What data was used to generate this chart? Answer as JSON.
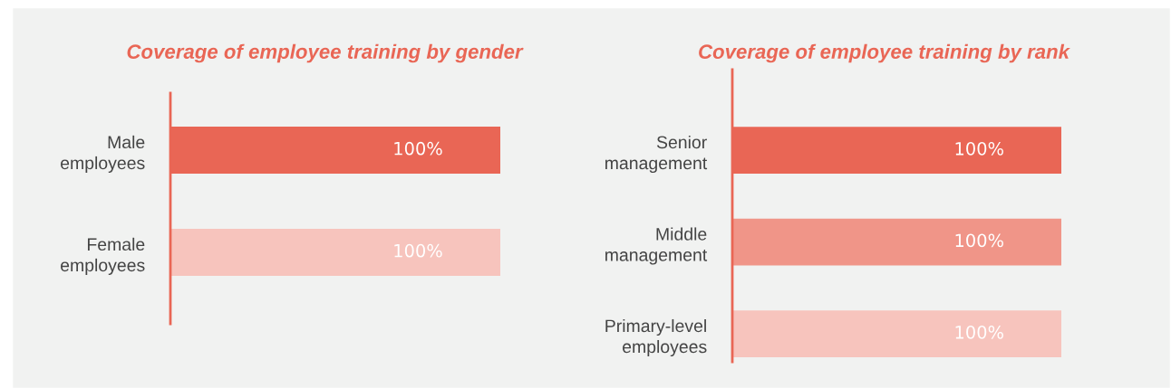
{
  "chart_data": [
    {
      "type": "bar",
      "orientation": "horizontal",
      "title": "Coverage of employee training by gender",
      "categories": [
        "Male employees",
        "Female employees"
      ],
      "values": [
        100,
        100
      ],
      "colors": [
        "#e96655",
        "#f7c4bd"
      ],
      "value_labels": [
        "100%",
        "100%"
      ],
      "legend": false
    },
    {
      "type": "bar",
      "orientation": "horizontal",
      "title": "Coverage of employee training by rank",
      "categories": [
        "Senior management",
        "Middle management",
        "Primary-level employees"
      ],
      "values": [
        100,
        100,
        100
      ],
      "colors": [
        "#e96655",
        "#f09588",
        "#f7c4bd"
      ],
      "value_labels": [
        "100%",
        "100%",
        "100%"
      ],
      "legend": false
    }
  ]
}
